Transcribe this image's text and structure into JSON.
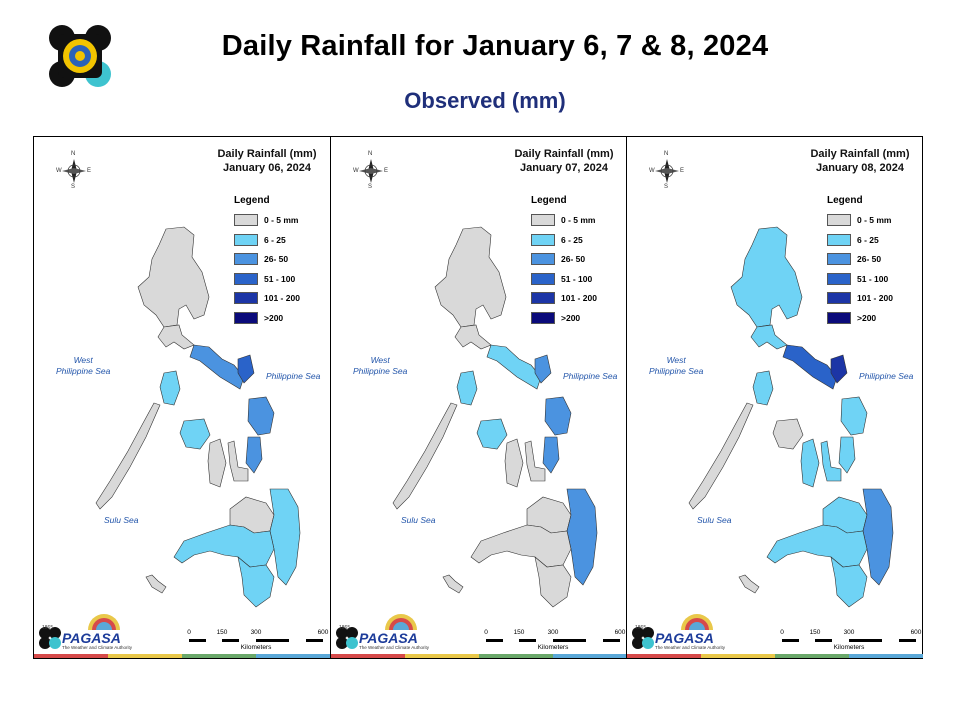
{
  "header": {
    "title": "Daily Rainfall for January 6, 7 & 8, 2024",
    "subtitle": "Observed (mm)"
  },
  "legend": {
    "title": "Legend",
    "items": [
      {
        "label": "0 - 5 mm",
        "color": "#d9d9d9"
      },
      {
        "label": "6 - 25",
        "color": "#6fd3f5"
      },
      {
        "label": "26- 50",
        "color": "#4b93e0"
      },
      {
        "label": "51 - 100",
        "color": "#2a63c9"
      },
      {
        "label": "101 - 200",
        "color": "#1c35a6"
      },
      {
        "label": ">200",
        "color": "#0a0a7a"
      }
    ]
  },
  "panels": [
    {
      "title": "Daily Rainfall (mm)",
      "date": "January 06, 2024",
      "regions": {
        "bicol": "26- 50",
        "samar": "26- 50",
        "panay_west": "6 - 25",
        "mindoro": "6 - 25",
        "east_mindanao": "6 - 25",
        "south_mindanao": "6 - 25",
        "catanduanes": "51 - 100",
        "palawan": "0 - 5 mm",
        "luzon_north": "0 - 5 mm",
        "central_mindanao": "0 - 5 mm"
      }
    },
    {
      "title": "Daily Rainfall (mm)",
      "date": "January 07, 2024",
      "regions": {
        "bicol": "6 - 25",
        "samar": "26- 50",
        "panay_west": "6 - 25",
        "mindoro": "6 - 25",
        "east_mindanao": "26- 50",
        "south_mindanao": "0 - 5 mm",
        "catanduanes": "26- 50",
        "palawan": "0 - 5 mm",
        "luzon_north": "0 - 5 mm",
        "central_mindanao": "0 - 5 mm"
      }
    },
    {
      "title": "Daily Rainfall (mm)",
      "date": "January 08, 2024",
      "regions": {
        "bicol": "51 - 100",
        "samar": "6 - 25",
        "panay_west": "0 - 5 mm",
        "mindoro": "6 - 25",
        "east_mindanao": "26- 50",
        "south_mindanao": "6 - 25",
        "catanduanes": "101 - 200",
        "palawan": "0 - 5 mm",
        "luzon_north": "6 - 25",
        "central_mindanao": "6 - 25"
      }
    }
  ],
  "seas": {
    "west_line1": "West",
    "west_line2": "Philippine Sea",
    "east": "Philippine Sea",
    "sulu": "Sulu Sea"
  },
  "scale": {
    "ticks": [
      "0",
      "150",
      "300",
      "600"
    ],
    "unit": "Kilometers"
  },
  "compass": {
    "n": "N",
    "s": "S",
    "e": "E",
    "w": "W"
  },
  "branding": {
    "agency": "PAGASA",
    "year": "1865",
    "tagline": "The Weather and Climate Authority"
  },
  "strip_colors": [
    "#d64a4a",
    "#e9c84a",
    "#6aa86a",
    "#5aa8d8"
  ]
}
